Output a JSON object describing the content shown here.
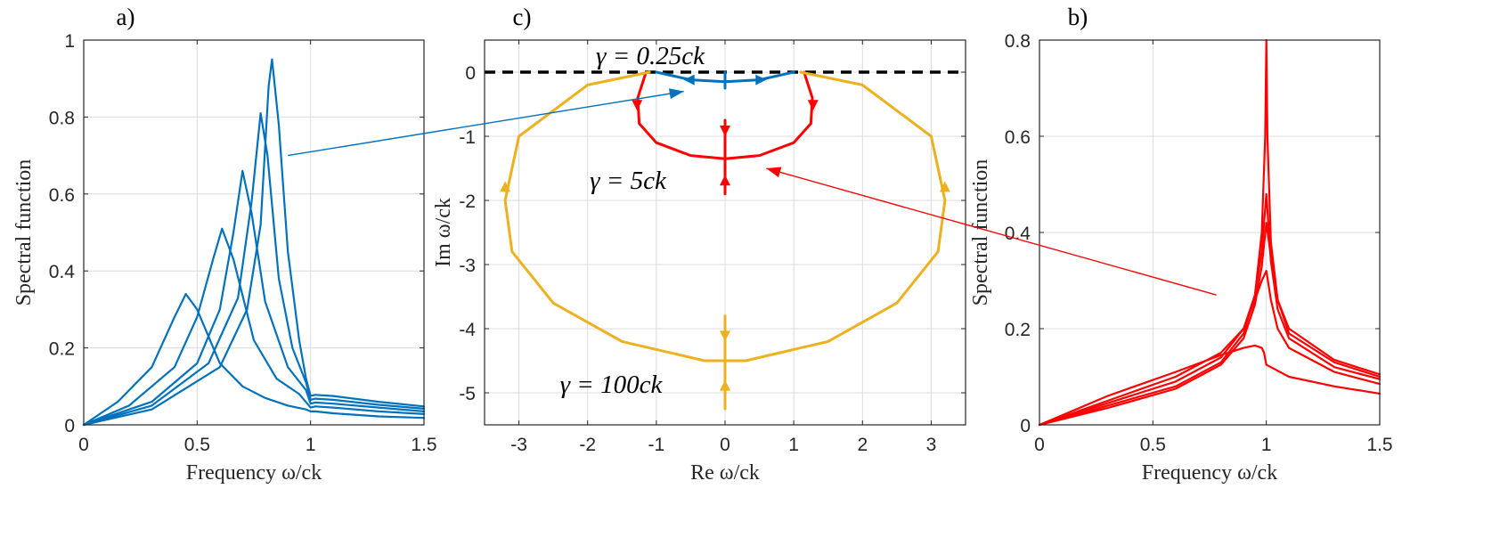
{
  "chart_data": [
    {
      "panel_label": "a)",
      "type": "line",
      "xlabel": "Frequency ω/ck",
      "ylabel": "Spectral function",
      "xlim": [
        0,
        1.5
      ],
      "ylim": [
        0,
        1
      ],
      "xticks": [
        "0",
        "0.5",
        "1",
        "1.5"
      ],
      "yticks": [
        "0",
        "0.2",
        "0.4",
        "0.6",
        "0.8",
        "1"
      ],
      "grid": true,
      "color": "#0072BD",
      "series": [
        {
          "x": [
            0,
            0.15,
            0.3,
            0.4,
            0.45,
            0.5,
            0.6,
            0.7,
            0.8,
            0.9,
            0.98,
            1.0,
            1.02,
            1.1,
            1.3,
            1.5
          ],
          "values": [
            0,
            0.06,
            0.15,
            0.28,
            0.34,
            0.3,
            0.16,
            0.1,
            0.07,
            0.05,
            0.04,
            0.035,
            0.035,
            0.03,
            0.022,
            0.018
          ]
        },
        {
          "x": [
            0,
            0.2,
            0.4,
            0.5,
            0.57,
            0.61,
            0.66,
            0.75,
            0.85,
            0.95,
            1.0,
            1.02,
            1.1,
            1.3,
            1.5
          ],
          "values": [
            0,
            0.05,
            0.15,
            0.28,
            0.43,
            0.51,
            0.43,
            0.22,
            0.12,
            0.08,
            0.045,
            0.048,
            0.045,
            0.035,
            0.028
          ]
        },
        {
          "x": [
            0,
            0.3,
            0.5,
            0.6,
            0.66,
            0.7,
            0.74,
            0.8,
            0.9,
            0.98,
            1.0,
            1.02,
            1.1,
            1.3,
            1.5
          ],
          "values": [
            0,
            0.06,
            0.16,
            0.3,
            0.5,
            0.66,
            0.55,
            0.32,
            0.15,
            0.09,
            0.055,
            0.058,
            0.055,
            0.045,
            0.035
          ]
        },
        {
          "x": [
            0,
            0.3,
            0.55,
            0.68,
            0.74,
            0.78,
            0.81,
            0.86,
            0.92,
            0.98,
            1.0,
            1.02,
            1.1,
            1.3,
            1.5
          ],
          "values": [
            0,
            0.05,
            0.16,
            0.33,
            0.58,
            0.81,
            0.7,
            0.38,
            0.2,
            0.11,
            0.065,
            0.068,
            0.065,
            0.052,
            0.042
          ]
        },
        {
          "x": [
            0,
            0.3,
            0.6,
            0.72,
            0.78,
            0.815,
            0.83,
            0.86,
            0.9,
            0.95,
            0.98,
            1.0,
            1.02,
            1.1,
            1.3,
            1.5
          ],
          "values": [
            0,
            0.04,
            0.15,
            0.3,
            0.52,
            0.88,
            0.95,
            0.78,
            0.45,
            0.22,
            0.12,
            0.075,
            0.078,
            0.075,
            0.06,
            0.048
          ]
        }
      ],
      "annotation_arrow": {
        "from": [
          0.9,
          0.7
        ],
        "to_panel": "c)",
        "to": [
          -0.6,
          -0.3
        ]
      }
    },
    {
      "panel_label": "c)",
      "type": "line",
      "xlabel": "Re ω/ck",
      "ylabel": "Im ω/ck",
      "xlim": [
        -3.5,
        3.5
      ],
      "ylim": [
        -5.5,
        0.5
      ],
      "xticks": [
        "-3",
        "-2",
        "-1",
        "0",
        "1",
        "2",
        "3"
      ],
      "yticks": [
        "0",
        "-1",
        "-2",
        "-3",
        "-4",
        "-5"
      ],
      "grid": true,
      "annotations": [
        "γ = 0.25ck",
        "γ = 5ck",
        "γ = 100ck"
      ],
      "dashed_line": {
        "y": 0,
        "color": "#000000"
      },
      "series": [
        {
          "color": "#0072BD",
          "x": [
            -1,
            -0.5,
            0,
            0.5,
            1
          ],
          "values": [
            0,
            -0.12,
            -0.15,
            -0.12,
            0
          ]
        },
        {
          "color": "#0072BD",
          "x": [
            0,
            0
          ],
          "values": [
            0,
            -0.25
          ]
        },
        {
          "color": "#FF0000",
          "x": [
            -1.15,
            -1.27,
            -1.25,
            -1.0,
            -0.5,
            0,
            0.5,
            1.0,
            1.25,
            1.27,
            1.15
          ],
          "values": [
            0,
            -0.4,
            -0.8,
            -1.1,
            -1.3,
            -1.35,
            -1.3,
            -1.1,
            -0.8,
            -0.4,
            0
          ]
        },
        {
          "color": "#FF0000",
          "x": [
            0,
            0
          ],
          "values": [
            -0.75,
            -1.9
          ]
        },
        {
          "color": "#EDB120",
          "x": [
            -1.1,
            -2,
            -3,
            -3.2,
            -3.1,
            -2.5,
            -1.5,
            -0.3,
            0,
            0.3,
            1.5,
            2.5,
            3.1,
            3.2,
            3,
            2,
            1.1
          ],
          "values": [
            0,
            -0.2,
            -1.0,
            -2.0,
            -2.8,
            -3.6,
            -4.2,
            -4.5,
            -4.5,
            -4.5,
            -4.2,
            -3.6,
            -2.8,
            -2.0,
            -1.0,
            -0.2,
            0
          ]
        },
        {
          "color": "#EDB120",
          "x": [
            0,
            0
          ],
          "values": [
            -3.8,
            -5.25
          ]
        }
      ]
    },
    {
      "panel_label": "b)",
      "type": "line",
      "xlabel": "Frequency ω/ck",
      "ylabel": "Spectral function",
      "xlim": [
        0,
        1.5
      ],
      "ylim": [
        0,
        0.8
      ],
      "xticks": [
        "0",
        "0.5",
        "1",
        "1.5"
      ],
      "yticks": [
        "0",
        "0.2",
        "0.4",
        "0.6",
        "0.8"
      ],
      "grid": true,
      "color": "#FF0000",
      "series": [
        {
          "x": [
            0,
            0.3,
            0.6,
            0.8,
            0.9,
            0.95,
            0.98,
            0.99,
            1.0,
            1.02,
            1.1,
            1.3,
            1.5
          ],
          "values": [
            0,
            0.06,
            0.11,
            0.145,
            0.16,
            0.165,
            0.16,
            0.15,
            0.125,
            0.12,
            0.1,
            0.08,
            0.065
          ]
        },
        {
          "x": [
            0,
            0.3,
            0.6,
            0.8,
            0.9,
            0.95,
            0.98,
            1.0,
            1.02,
            1.05,
            1.1,
            1.3,
            1.5
          ],
          "values": [
            0,
            0.05,
            0.1,
            0.15,
            0.2,
            0.26,
            0.3,
            0.32,
            0.26,
            0.2,
            0.16,
            0.11,
            0.085
          ]
        },
        {
          "x": [
            0,
            0.3,
            0.6,
            0.8,
            0.9,
            0.95,
            0.98,
            1.0,
            1.02,
            1.05,
            1.1,
            1.3,
            1.5
          ],
          "values": [
            0,
            0.045,
            0.09,
            0.14,
            0.2,
            0.27,
            0.36,
            0.48,
            0.34,
            0.24,
            0.18,
            0.12,
            0.095
          ]
        },
        {
          "x": [
            0,
            0.3,
            0.6,
            0.8,
            0.9,
            0.95,
            0.98,
            0.995,
            1.0,
            1.005,
            1.02,
            1.05,
            1.1,
            1.3,
            1.5
          ],
          "values": [
            0,
            0.04,
            0.08,
            0.13,
            0.19,
            0.27,
            0.4,
            0.6,
            0.8,
            0.6,
            0.38,
            0.26,
            0.19,
            0.13,
            0.1
          ]
        },
        {
          "x": [
            0,
            0.3,
            0.6,
            0.8,
            0.9,
            0.95,
            0.98,
            1.0,
            1.02,
            1.05,
            1.1,
            1.3,
            1.5
          ],
          "values": [
            0,
            0.035,
            0.075,
            0.125,
            0.18,
            0.25,
            0.33,
            0.42,
            0.35,
            0.26,
            0.2,
            0.135,
            0.105
          ]
        }
      ],
      "annotation_arrow": {
        "from": [
          0.78,
          0.27
        ],
        "to_panel": "c)",
        "to": [
          0.6,
          -1.5
        ]
      }
    }
  ]
}
